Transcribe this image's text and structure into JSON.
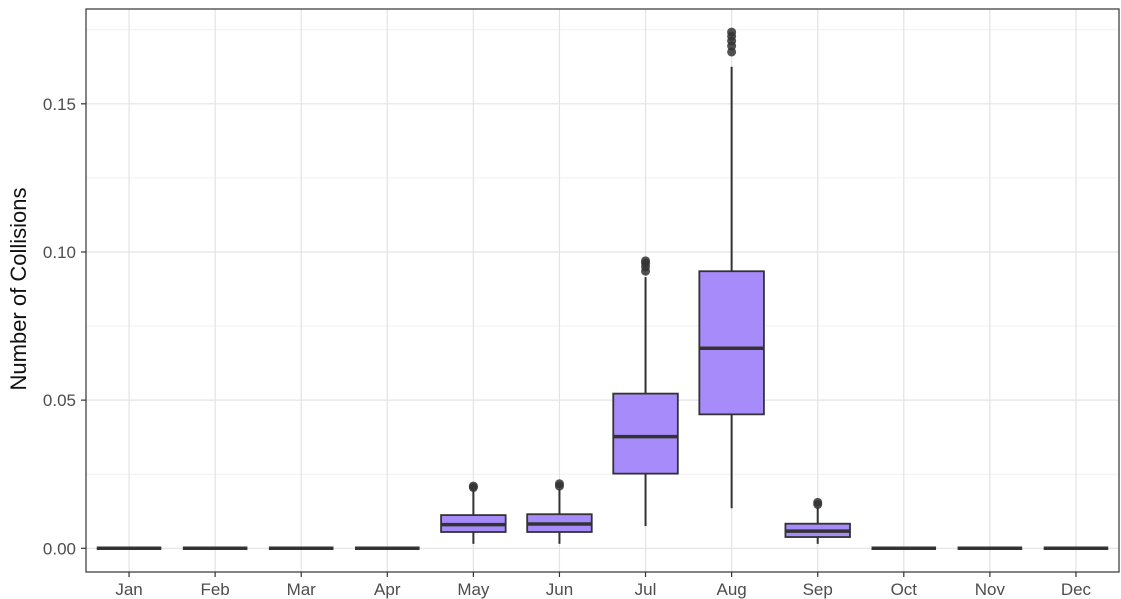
{
  "chart_data": {
    "type": "boxplot",
    "title": "",
    "xlabel": "",
    "ylabel": "Number of Collisions",
    "ylim": [
      -0.008,
      0.182
    ],
    "y_ticks": [
      0.0,
      0.05,
      0.1,
      0.15
    ],
    "y_tick_labels": [
      "0.00",
      "0.05",
      "0.10",
      "0.15"
    ],
    "y_minor_ticks": [
      0.025,
      0.075,
      0.125,
      0.175
    ],
    "grid": true,
    "legend": "none",
    "box_fill": "#a78bfa",
    "box_stroke": "#333333",
    "categories": [
      "Jan",
      "Feb",
      "Mar",
      "Apr",
      "May",
      "Jun",
      "Jul",
      "Aug",
      "Sep",
      "Oct",
      "Nov",
      "Dec"
    ],
    "boxes": [
      {
        "min": 0,
        "q1": 0,
        "median": 0,
        "q3": 0,
        "max": 0,
        "outliers": []
      },
      {
        "min": 0,
        "q1": 0,
        "median": 0,
        "q3": 0,
        "max": 0,
        "outliers": []
      },
      {
        "min": 0,
        "q1": 0,
        "median": 0,
        "q3": 0,
        "max": 0,
        "outliers": []
      },
      {
        "min": 0,
        "q1": 0,
        "median": 0,
        "q3": 0,
        "max": 0,
        "outliers": []
      },
      {
        "min": 0.0015,
        "q1": 0.0055,
        "median": 0.008,
        "q3": 0.0112,
        "max": 0.0195,
        "outliers": [
          0.0205,
          0.021
        ]
      },
      {
        "min": 0.0015,
        "q1": 0.0055,
        "median": 0.0082,
        "q3": 0.0115,
        "max": 0.02,
        "outliers": [
          0.021,
          0.0218
        ]
      },
      {
        "min": 0.0075,
        "q1": 0.0252,
        "median": 0.0377,
        "q3": 0.0522,
        "max": 0.0915,
        "outliers": [
          0.0935,
          0.095,
          0.0962,
          0.097
        ]
      },
      {
        "min": 0.0135,
        "q1": 0.0452,
        "median": 0.0675,
        "q3": 0.0935,
        "max": 0.1625,
        "outliers": [
          0.1675,
          0.1695,
          0.1712,
          0.1728,
          0.1742
        ]
      },
      {
        "min": 0.0015,
        "q1": 0.0038,
        "median": 0.0058,
        "q3": 0.0083,
        "max": 0.0138,
        "outliers": [
          0.0148,
          0.0155
        ]
      },
      {
        "min": 0,
        "q1": 0,
        "median": 0,
        "q3": 0,
        "max": 0,
        "outliers": []
      },
      {
        "min": 0,
        "q1": 0,
        "median": 0,
        "q3": 0,
        "max": 0,
        "outliers": []
      },
      {
        "min": 0,
        "q1": 0,
        "median": 0,
        "q3": 0,
        "max": 0,
        "outliers": []
      }
    ]
  }
}
